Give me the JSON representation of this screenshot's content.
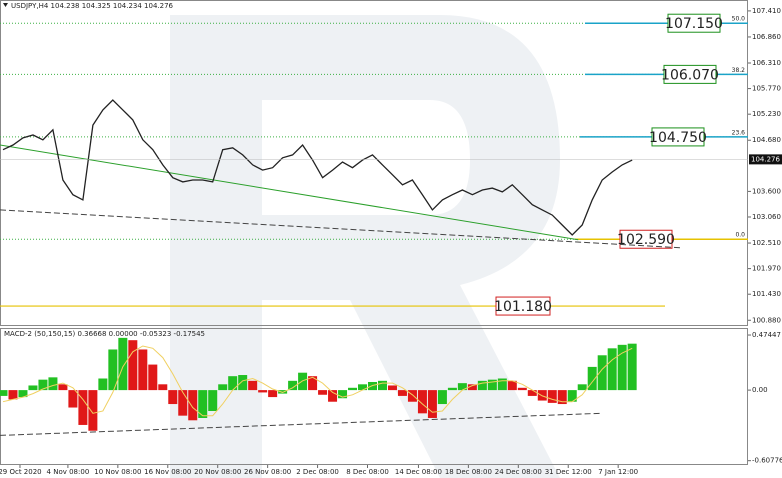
{
  "chart_data": [
    {
      "type": "line",
      "title": "USDJPY,H4 104.238 104.325 104.234 104.276",
      "x": [
        0,
        1,
        2,
        3,
        4,
        5,
        6,
        7,
        8,
        9,
        10,
        11,
        12,
        13,
        14,
        15,
        16,
        17,
        18,
        19,
        20,
        21,
        22,
        23,
        24,
        25,
        26,
        27,
        28,
        29,
        30,
        31,
        32,
        33,
        34,
        35,
        36,
        37,
        38,
        39,
        40,
        41,
        42,
        43,
        44,
        45,
        46,
        47,
        48,
        49,
        50,
        51,
        52,
        53,
        54,
        55,
        56,
        57,
        58,
        59,
        60,
        61,
        62,
        63
      ],
      "series": [
        {
          "color": "#222222",
          "values": [
            104.48,
            104.58,
            104.73,
            104.79,
            104.69,
            104.9,
            103.84,
            103.53,
            103.42,
            105.0,
            105.32,
            105.53,
            105.32,
            105.11,
            104.69,
            104.48,
            104.16,
            103.89,
            103.8,
            103.84,
            103.84,
            103.8,
            104.48,
            104.52,
            104.37,
            104.16,
            104.05,
            104.1,
            104.31,
            104.37,
            104.58,
            104.26,
            103.89,
            104.05,
            104.22,
            104.1,
            104.26,
            104.37,
            104.16,
            103.95,
            103.74,
            103.84,
            103.53,
            103.21,
            103.42,
            103.53,
            103.63,
            103.53,
            103.63,
            103.67,
            103.59,
            103.74,
            103.53,
            103.32,
            103.21,
            103.1,
            102.89,
            102.68,
            102.89,
            103.42,
            103.84,
            104.01,
            104.16,
            104.26
          ]
        }
      ],
      "xlim": [
        -0.3,
        74.6
      ],
      "ylim": [
        100.78,
        107.64
      ],
      "yticks": [
        {
          "value": 107.41,
          "label": "107.410"
        },
        {
          "value": 106.86,
          "label": "106.860"
        },
        {
          "value": 106.31,
          "label": "106.310"
        },
        {
          "value": 105.77,
          "label": "105.770"
        },
        {
          "value": 105.23,
          "label": "105.230"
        },
        {
          "value": 104.68,
          "label": "104.680"
        },
        {
          "value": 103.6,
          "label": "103.600"
        },
        {
          "value": 103.06,
          "label": "103.060"
        },
        {
          "value": 102.51,
          "label": "102.510"
        },
        {
          "value": 101.97,
          "label": "101.970"
        },
        {
          "value": 101.43,
          "label": "101.430"
        },
        {
          "value": 100.88,
          "label": "100.880"
        }
      ],
      "xticks": [
        {
          "value": 1.7,
          "label": "29 Oct 2020"
        },
        {
          "value": 6.5,
          "label": "4 Nov 08:00"
        },
        {
          "value": 11.5,
          "label": "10 Nov 08:00"
        },
        {
          "value": 16.5,
          "label": "16 Nov 08:00"
        },
        {
          "value": 21.5,
          "label": "20 Nov 08:00"
        },
        {
          "value": 26.5,
          "label": "26 Nov 08:00"
        },
        {
          "value": 31.5,
          "label": "2 Dec 08:00"
        },
        {
          "value": 36.5,
          "label": "8 Dec 08:00"
        },
        {
          "value": 41.6,
          "label": "14 Dec 08:00"
        },
        {
          "value": 46.6,
          "label": "18 Dec 08:00"
        },
        {
          "value": 51.6,
          "label": "24 Dec 08:00"
        },
        {
          "value": 56.6,
          "label": "31 Dec 12:00"
        },
        {
          "value": 61.6,
          "label": "7 Jan 12:00"
        }
      ],
      "last_price": {
        "value": 104.276,
        "label": "104.276"
      },
      "levels": [
        {
          "ratio": "50.0",
          "price": {
            "value": 107.15,
            "label": "107.150"
          },
          "color": "#1a8f1a",
          "line_color": "#1aa3c8"
        },
        {
          "ratio": "38.2",
          "price": {
            "value": 106.07,
            "label": "106.070"
          },
          "color": "#1a8f1a",
          "line_color": "#1aa3c8"
        },
        {
          "ratio": "23.6",
          "price": {
            "value": 104.75,
            "label": "104.750"
          },
          "color": "#1a8f1a",
          "line_color": "#1aa3c8"
        },
        {
          "ratio": "0.0",
          "price": {
            "value": 102.59,
            "label": "102.590"
          },
          "color": "#d02020",
          "line_color": "#e6c200"
        }
      ],
      "support": {
        "price": {
          "value": 101.18,
          "label": "101.180"
        },
        "color": "#d02020",
        "line_color": "#e6c200"
      },
      "trendlines": [
        {
          "color": "#2ca02c",
          "dashed": false,
          "x": [
            -0.3,
            57.6
          ],
          "values": [
            104.58,
            102.58
          ]
        },
        {
          "color": "#444444",
          "dashed": true,
          "x": [
            -0.3,
            67.8
          ],
          "values": [
            103.21,
            102.41
          ]
        }
      ]
    },
    {
      "type": "bar",
      "title": "MACD-2 (50,150,15) 0.36668 0.00000 -0.05323 -0.17545",
      "x": [
        0,
        1,
        2,
        3,
        4,
        5,
        6,
        7,
        8,
        9,
        10,
        11,
        12,
        13,
        14,
        15,
        16,
        17,
        18,
        19,
        20,
        21,
        22,
        23,
        24,
        25,
        26,
        27,
        28,
        29,
        30,
        31,
        32,
        33,
        34,
        35,
        36,
        37,
        38,
        39,
        40,
        41,
        42,
        43,
        44,
        45,
        46,
        47,
        48,
        49,
        50,
        51,
        52,
        53,
        54,
        55,
        56,
        57,
        58,
        59,
        60,
        61,
        62,
        63
      ],
      "values": [
        -0.05,
        -0.08,
        -0.06,
        0.04,
        0.09,
        0.11,
        0.05,
        -0.15,
        -0.3,
        -0.35,
        0.1,
        0.35,
        0.45,
        0.43,
        0.35,
        0.22,
        0.05,
        -0.12,
        -0.22,
        -0.26,
        -0.24,
        -0.18,
        0.05,
        0.12,
        0.13,
        0.08,
        -0.02,
        -0.06,
        -0.03,
        0.08,
        0.15,
        0.12,
        -0.04,
        -0.1,
        -0.07,
        0.02,
        0.05,
        0.07,
        0.08,
        0.04,
        -0.05,
        -0.1,
        -0.2,
        -0.24,
        -0.12,
        0.02,
        0.06,
        0.05,
        0.08,
        0.09,
        0.1,
        0.08,
        0.02,
        -0.05,
        -0.09,
        -0.11,
        -0.12,
        -0.1,
        0.05,
        0.2,
        0.3,
        0.36,
        0.39,
        0.4
      ],
      "signal": [
        -0.1,
        -0.08,
        -0.06,
        -0.03,
        0.01,
        0.04,
        0.06,
        0.02,
        -0.08,
        -0.2,
        -0.18,
        -0.02,
        0.2,
        0.33,
        0.38,
        0.36,
        0.28,
        0.14,
        -0.02,
        -0.15,
        -0.22,
        -0.22,
        -0.12,
        0.0,
        0.08,
        0.1,
        0.06,
        0.01,
        -0.02,
        0.02,
        0.08,
        0.11,
        0.06,
        -0.02,
        -0.06,
        -0.04,
        0.0,
        0.04,
        0.06,
        0.06,
        0.02,
        -0.04,
        -0.12,
        -0.19,
        -0.18,
        -0.08,
        0.0,
        0.04,
        0.06,
        0.07,
        0.08,
        0.08,
        0.05,
        0.0,
        -0.05,
        -0.08,
        -0.1,
        -0.1,
        -0.04,
        0.07,
        0.18,
        0.26,
        0.32,
        0.36
      ],
      "up_color": "#22c022",
      "down_color": "#e01818",
      "signal_color": "#f0d060",
      "xlim": [
        -0.3,
        74.6
      ],
      "ylim": [
        -0.645,
        0.535
      ],
      "yticks": [
        0.47447,
        {
          "value": 0,
          "label": "0.00"
        },
        -0.60776
      ],
      "trendlines": [
        {
          "color": "#444444",
          "dashed": true,
          "x": [
            -0.3,
            59.8
          ],
          "values": [
            -0.39,
            -0.2
          ]
        }
      ]
    }
  ]
}
